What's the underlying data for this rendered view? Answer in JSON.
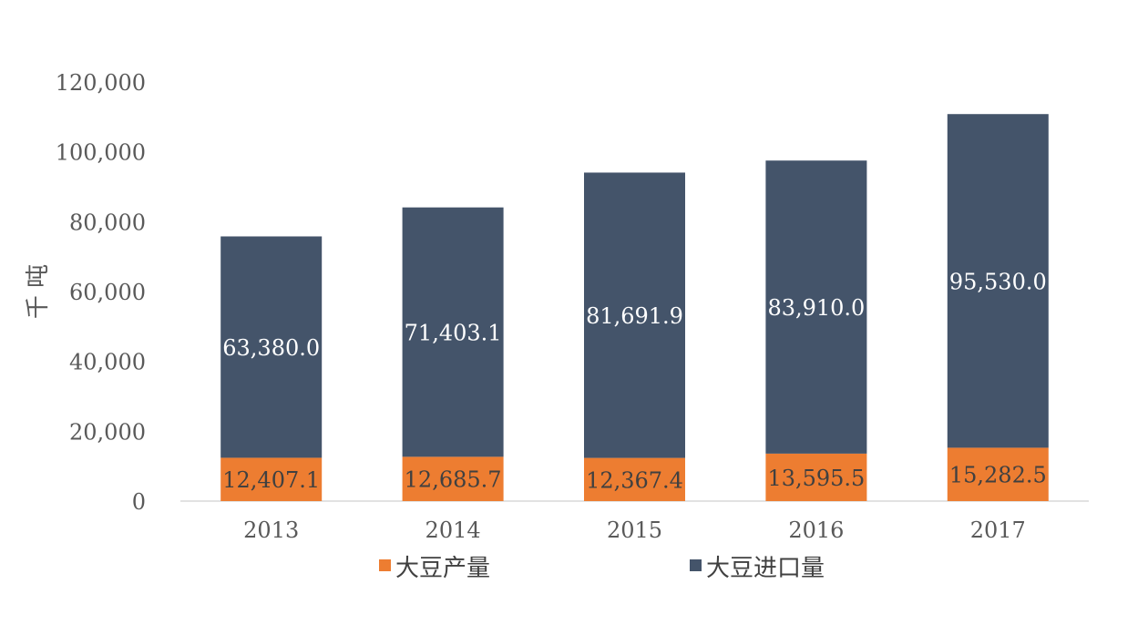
{
  "chart_data": {
    "type": "bar",
    "stacked": true,
    "categories": [
      "2013",
      "2014",
      "2015",
      "2016",
      "2017"
    ],
    "series": [
      {
        "name": "大豆产量",
        "color": "#ED7D31",
        "label_color": "#404040",
        "values": [
          12407.1,
          12685.7,
          12367.4,
          13595.5,
          15282.5
        ],
        "labels": [
          "12,407.1",
          "12,685.7",
          "12,367.4",
          "13,595.5",
          "15,282.5"
        ]
      },
      {
        "name": "大豆进口量",
        "color": "#44546A",
        "label_color": "#ffffff",
        "values": [
          63380.0,
          71403.1,
          81691.9,
          83910.0,
          95530.0
        ],
        "labels": [
          "63,380.0",
          "71,403.1",
          "81,691.9",
          "83,910.0",
          "95,530.0"
        ]
      }
    ],
    "ylabel": "千 吨",
    "ylim": [
      0,
      120000
    ],
    "yticks": [
      0,
      20000,
      40000,
      60000,
      80000,
      100000,
      120000
    ],
    "ytick_labels": [
      "0",
      "20,000",
      "40,000",
      "60,000",
      "80,000",
      "100,000",
      "120,000"
    ],
    "grid": false,
    "legend_position": "bottom"
  }
}
